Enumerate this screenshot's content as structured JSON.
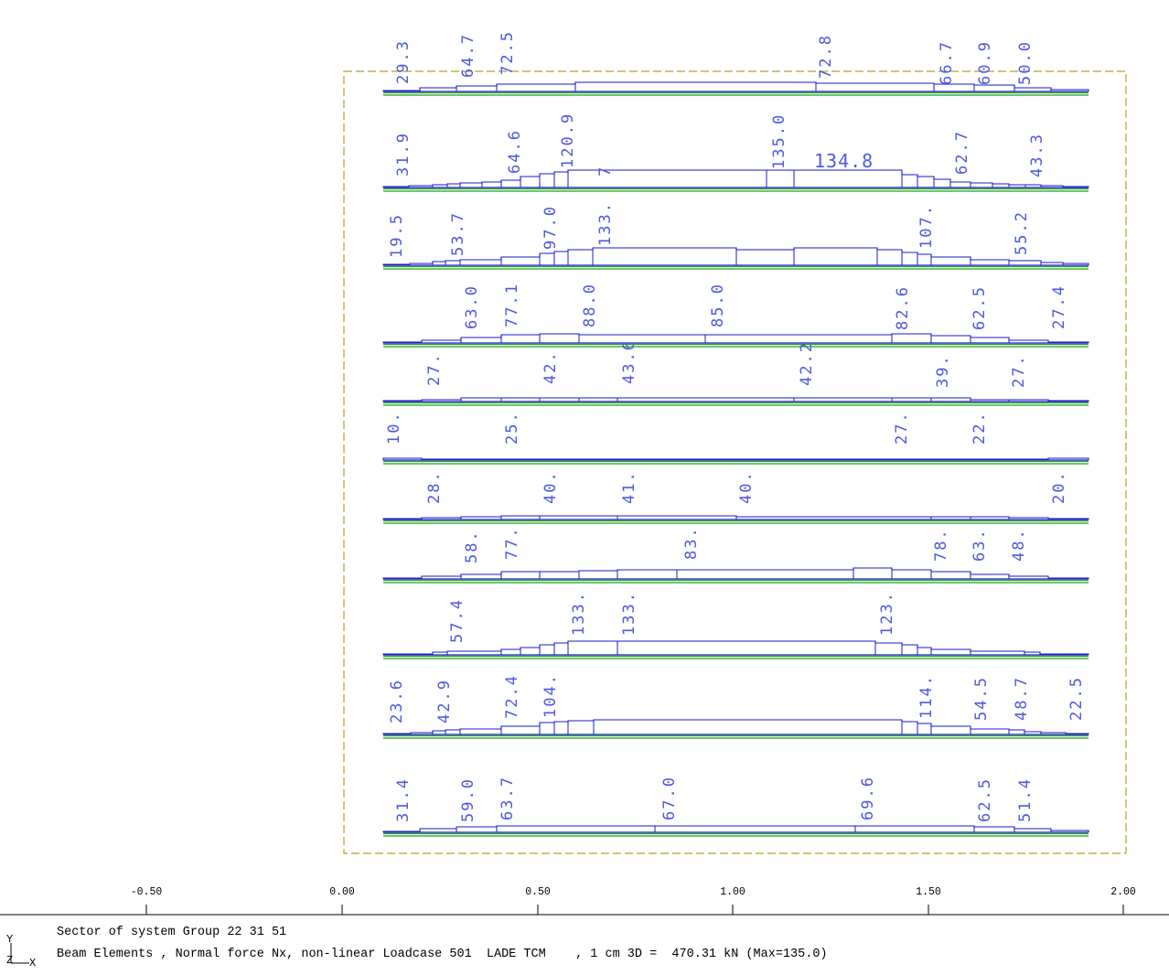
{
  "scale": {
    "ticks": [
      "-0.50",
      "0.00",
      "0.50",
      "1.00",
      "1.50",
      "2.00"
    ]
  },
  "legend": {
    "axis_y": "Y",
    "axis_z": "Z",
    "axis_x": "X",
    "line1": "Sector of system Group 22 31 51",
    "line2": "Beam Elements , Normal force Nx, non-linear Loadcase 501  LADE TCM    , 1 cm 3D =  470.31 kN (Max=135.0)"
  },
  "colors": {
    "diagram": "#1a1acc",
    "element": "#1fa01f",
    "label": "#4d5ae0",
    "frame": "#b8a020",
    "axis": "#000000"
  },
  "rows": [
    {
      "labels": [
        "29.3",
        "64.7",
        "72.5",
        "72.8",
        "66.7",
        "60.9",
        "50.0"
      ]
    },
    {
      "labels": [
        "31.9",
        "64.6",
        "120.9",
        "135.0",
        "62.7",
        "43.3"
      ],
      "extra": [
        "134.8"
      ],
      "partial": [
        "7"
      ]
    },
    {
      "labels": [
        "19.5",
        "53.7",
        "97.0",
        "133.",
        "107.",
        "55.2"
      ]
    },
    {
      "labels": [
        "63.0",
        "77.1",
        "88.0",
        "85.0",
        "82.6",
        "62.5",
        "27.4"
      ]
    },
    {
      "labels": [
        "27.",
        "42.",
        "43.6",
        "42.2",
        "39.",
        "27."
      ]
    },
    {
      "labels": [
        "10.",
        "25.",
        "27.",
        "22."
      ]
    },
    {
      "labels": [
        "28.",
        "40.",
        "41.",
        "40.",
        "20."
      ]
    },
    {
      "labels": [
        "58.",
        "77.",
        "83.",
        "78.",
        "63.",
        "48."
      ]
    },
    {
      "labels": [
        "57.4",
        "133.",
        "133.",
        "123."
      ]
    },
    {
      "labels": [
        "23.6",
        "42.9",
        "72.4",
        "104.",
        "114.",
        "54.5",
        "48.7",
        "22.5"
      ]
    },
    {
      "labels": [
        "31.4",
        "59.0",
        "63.7",
        "67.0",
        "69.6",
        "62.5",
        "51.4"
      ]
    }
  ]
}
